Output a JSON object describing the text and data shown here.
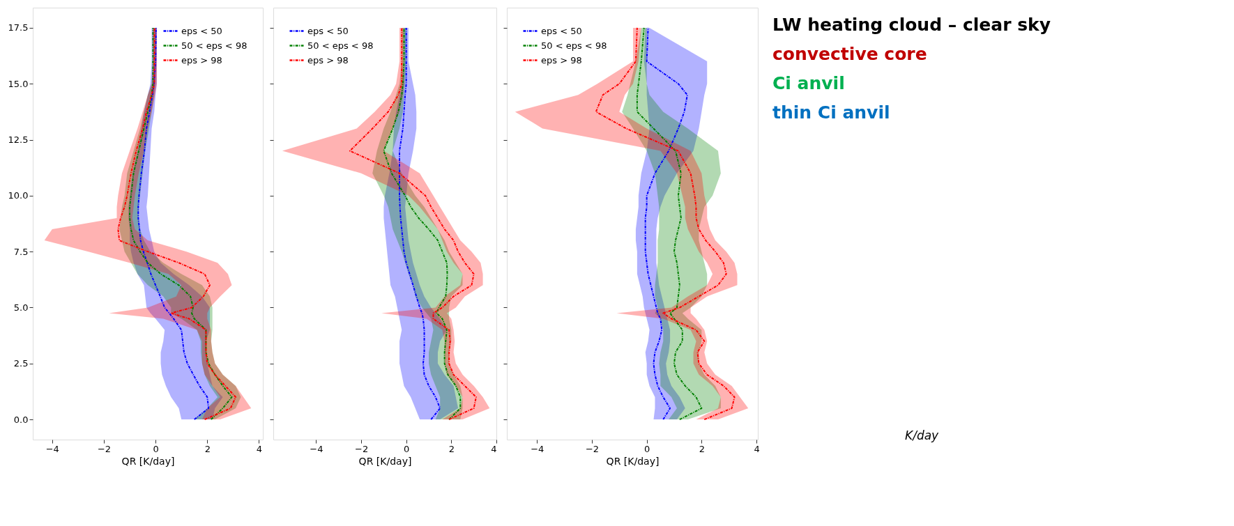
{
  "chart_data": [
    {
      "type": "line",
      "orientation": "horizontal",
      "xlabel": "QR [K/day]",
      "legend": "top right",
      "line_style": "dashed",
      "marker": "none",
      "grid": false,
      "xlim": [
        -4.75,
        4.15
      ],
      "xticks": [
        -4,
        -2,
        0,
        2,
        4
      ],
      "ylim": [
        -0.9,
        18.4
      ],
      "yticks": [
        {
          "value": 0,
          "label": "0.0"
        },
        2.5,
        {
          "value": 5,
          "label": "5.0"
        },
        7.5,
        {
          "value": 10,
          "label": "10.0"
        },
        12.5,
        {
          "value": 15,
          "label": "15.0"
        },
        17.5
      ],
      "x": [
        0,
        0.5,
        1,
        1.5,
        2,
        2.5,
        3,
        3.5,
        4,
        4.5,
        4.75,
        5,
        5.5,
        6,
        6.5,
        7,
        7.5,
        8,
        8.5,
        9,
        9.5,
        10,
        11,
        12,
        13,
        13.75,
        14.5,
        15,
        16,
        17.5
      ],
      "series": [
        {
          "name": "eps < 50",
          "color": "#0000ff",
          "values": [
            1.5,
            2.05,
            2.0,
            1.7,
            1.46,
            1.23,
            1.1,
            1.05,
            1.0,
            0.7,
            0.53,
            0.35,
            0.18,
            0,
            -0.18,
            -0.32,
            -0.47,
            -0.58,
            -0.62,
            -0.67,
            -0.67,
            -0.64,
            -0.55,
            -0.43,
            -0.35,
            -0.23,
            -0.12,
            -0.06,
            0.0,
            0.02
          ],
          "lower": [
            1.0,
            0.9,
            0.6,
            0.4,
            0.25,
            0.2,
            0.2,
            0.3,
            0.35,
            0.0,
            -0.2,
            -0.35,
            -0.4,
            -0.45,
            -0.7,
            -0.85,
            -0.95,
            -1.0,
            -1.0,
            -1.05,
            -1.05,
            -1.0,
            -0.9,
            -0.7,
            -0.55,
            -0.45,
            -0.3,
            -0.2,
            -0.15,
            -0.15
          ],
          "upper": [
            2.2,
            2.3,
            2.6,
            2.2,
            2.1,
            2.0,
            1.95,
            1.95,
            2.1,
            2.1,
            2.1,
            2.1,
            1.8,
            1.3,
            0.7,
            0.2,
            -0.05,
            -0.15,
            -0.25,
            -0.3,
            -0.35,
            -0.3,
            -0.25,
            -0.2,
            -0.15,
            -0.05,
            0.0,
            0.05,
            0.05,
            0.05
          ]
        },
        {
          "name": "50 < eps < 98",
          "color": "#008000",
          "values": [
            2.15,
            2.6,
            2.95,
            2.6,
            2.3,
            2.05,
            1.95,
            1.95,
            1.95,
            1.5,
            1.4,
            1.45,
            1.35,
            0.9,
            0.2,
            -0.3,
            -0.6,
            -0.85,
            -0.95,
            -1.0,
            -1.0,
            -0.95,
            -0.85,
            -0.65,
            -0.45,
            -0.3,
            -0.15,
            -0.1,
            -0.1,
            -0.1
          ],
          "lower": [
            1.5,
            2.0,
            2.4,
            2.1,
            1.9,
            1.8,
            1.75,
            1.75,
            1.6,
            1.0,
            0.6,
            0.6,
            0.3,
            -0.3,
            -0.7,
            -0.95,
            -1.2,
            -1.3,
            -1.4,
            -1.35,
            -1.3,
            -1.2,
            -1.1,
            -0.85,
            -0.6,
            -0.45,
            -0.3,
            -0.15,
            -0.1,
            -0.1
          ],
          "upper": [
            2.3,
            3.1,
            3.3,
            3.1,
            2.6,
            2.3,
            2.2,
            2.15,
            2.2,
            2.2,
            2.2,
            2.2,
            2.1,
            1.8,
            1.0,
            0.3,
            -0.2,
            -0.45,
            -0.6,
            -0.65,
            -0.65,
            -0.6,
            -0.5,
            -0.4,
            -0.25,
            -0.15,
            -0.05,
            0.0,
            0.02,
            0.02
          ]
        },
        {
          "name": "eps > 98",
          "color": "#ff0000",
          "values": [
            1.9,
            2.9,
            3.1,
            2.7,
            2.3,
            2.0,
            1.95,
            1.95,
            1.95,
            1.3,
            0.6,
            1.4,
            1.85,
            2.1,
            1.9,
            0.9,
            -0.3,
            -1.4,
            -1.45,
            -1.35,
            -1.2,
            -1.1,
            -0.95,
            -0.75,
            -0.5,
            -0.35,
            -0.15,
            -0.05,
            -0.04,
            -0.04
          ],
          "lower": [
            1.8,
            2.0,
            2.5,
            2.2,
            1.9,
            1.8,
            1.8,
            1.8,
            1.6,
            0.3,
            -1.8,
            -0.3,
            0.8,
            1.0,
            0.5,
            -1.0,
            -2.6,
            -4.3,
            -4.0,
            -1.5,
            -1.5,
            -1.45,
            -1.3,
            -1.0,
            -0.7,
            -0.5,
            -0.3,
            -0.15,
            -0.1,
            -0.1
          ],
          "upper": [
            2.5,
            3.7,
            3.4,
            3.1,
            2.6,
            2.3,
            2.2,
            2.15,
            2.15,
            2.0,
            2.0,
            2.1,
            2.5,
            2.95,
            2.8,
            2.4,
            1.2,
            -0.3,
            -0.8,
            -0.9,
            -0.85,
            -0.8,
            -0.65,
            -0.45,
            -0.3,
            -0.15,
            -0.02,
            0.05,
            0.05,
            0.05
          ]
        }
      ]
    },
    {
      "type": "line",
      "orientation": "horizontal",
      "xlabel": "QR [K/day]",
      "legend": "top left",
      "line_style": "dashed",
      "marker": "none",
      "grid": false,
      "tick_labels": "x",
      "xlim": [
        -5.9,
        4.0
      ],
      "xticks": [
        -4,
        -2,
        0,
        2,
        4
      ],
      "ylim": [
        -0.9,
        18.4
      ],
      "yticks": [
        0,
        2.5,
        5,
        7.5,
        10,
        12.5,
        15,
        17.5
      ],
      "x": [
        0,
        0.5,
        1,
        1.5,
        2,
        2.5,
        3,
        3.5,
        4,
        4.5,
        4.75,
        5,
        5.5,
        6,
        6.5,
        7,
        7.5,
        8,
        8.5,
        9,
        9.5,
        10,
        11,
        12,
        13,
        13.75,
        14.5,
        15,
        16,
        17.5
      ],
      "series": [
        {
          "name": "eps < 50",
          "color": "#0000ff",
          "values": [
            1.1,
            1.5,
            1.3,
            1.0,
            0.8,
            0.75,
            0.8,
            0.8,
            0.8,
            0.75,
            0.7,
            0.6,
            0.45,
            0.3,
            0.15,
            0.0,
            -0.1,
            -0.15,
            -0.2,
            -0.25,
            -0.28,
            -0.3,
            -0.3,
            -0.3,
            -0.15,
            -0.1,
            -0.05,
            0.0,
            0.0,
            0.0
          ],
          "lower": [
            0.6,
            0.4,
            0.2,
            -0.1,
            -0.2,
            -0.3,
            -0.3,
            -0.3,
            -0.2,
            -0.3,
            -0.35,
            -0.4,
            -0.5,
            -0.7,
            -0.75,
            -0.8,
            -0.85,
            -0.9,
            -0.95,
            -1.0,
            -1.0,
            -0.95,
            -0.75,
            -0.6,
            -0.55,
            -0.45,
            -0.3,
            -0.15,
            -0.1,
            -0.1
          ],
          "upper": [
            1.5,
            2.3,
            2.2,
            2.1,
            1.7,
            1.4,
            1.4,
            1.5,
            1.8,
            1.5,
            1.3,
            1.1,
            0.8,
            0.6,
            0.45,
            0.3,
            0.2,
            0.1,
            0.05,
            0.0,
            -0.05,
            0.0,
            0.1,
            0.3,
            0.45,
            0.45,
            0.4,
            0.3,
            0.1,
            0.1
          ]
        },
        {
          "name": "50 < eps < 98",
          "color": "#008000",
          "values": [
            1.9,
            2.4,
            2.4,
            2.2,
            1.85,
            1.7,
            1.7,
            1.75,
            1.8,
            1.6,
            1.35,
            1.45,
            1.75,
            1.8,
            1.82,
            1.8,
            1.6,
            1.4,
            1.0,
            0.55,
            0.2,
            -0.05,
            -0.65,
            -1.0,
            -0.6,
            -0.35,
            -0.2,
            -0.15,
            -0.1,
            -0.1
          ],
          "lower": [
            1.3,
            1.5,
            1.5,
            1.3,
            1.1,
            1.0,
            1.0,
            1.1,
            1.2,
            1.1,
            0.9,
            0.7,
            0.4,
            0.3,
            0.1,
            -0.05,
            -0.2,
            -0.4,
            -0.6,
            -0.7,
            -0.8,
            -1.0,
            -1.5,
            -1.3,
            -1.0,
            -0.7,
            -0.45,
            -0.3,
            -0.2,
            -0.2
          ],
          "upper": [
            2.4,
            2.5,
            2.5,
            2.4,
            2.1,
            1.9,
            1.9,
            2.0,
            2.0,
            1.9,
            1.9,
            1.9,
            2.0,
            2.5,
            2.5,
            2.2,
            1.9,
            1.7,
            1.4,
            1.1,
            0.8,
            0.4,
            -0.2,
            -0.6,
            -0.3,
            -0.15,
            -0.1,
            -0.05,
            0.0,
            0.0
          ]
        },
        {
          "name": "eps > 98",
          "color": "#ff0000",
          "values": [
            1.9,
            3.0,
            3.1,
            2.6,
            2.1,
            1.9,
            1.9,
            1.95,
            1.9,
            1.2,
            1.2,
            1.6,
            2.1,
            2.9,
            3.0,
            2.6,
            2.3,
            2.1,
            1.7,
            1.4,
            1.1,
            0.85,
            -0.3,
            -2.5,
            -1.5,
            -0.8,
            -0.35,
            -0.2,
            -0.2,
            -0.2
          ],
          "lower": [
            1.6,
            2.4,
            2.5,
            2.2,
            1.8,
            1.7,
            1.7,
            1.7,
            1.6,
            0.9,
            -1.1,
            1.3,
            1.7,
            2.4,
            2.5,
            2.1,
            1.8,
            1.6,
            1.4,
            1.0,
            0.6,
            0.1,
            -2.0,
            -5.5,
            -2.2,
            -1.4,
            -0.7,
            -0.45,
            -0.3,
            -0.3
          ],
          "upper": [
            2.5,
            3.7,
            3.4,
            3.0,
            2.5,
            2.2,
            2.1,
            2.15,
            2.1,
            2.0,
            1.8,
            2.2,
            2.6,
            3.4,
            3.4,
            3.3,
            2.9,
            2.4,
            2.1,
            1.8,
            1.5,
            1.2,
            0.6,
            -1.0,
            -0.6,
            -0.3,
            -0.15,
            -0.1,
            -0.1,
            -0.1
          ]
        }
      ]
    },
    {
      "type": "line",
      "orientation": "horizontal",
      "xlabel": "QR [K/day]",
      "legend": "top left",
      "line_style": "dashed",
      "marker": "none",
      "grid": false,
      "tick_labels": "x",
      "xlim": [
        -5.1,
        4.05
      ],
      "xticks": [
        -4,
        -2,
        0,
        2,
        4
      ],
      "ylim": [
        -0.9,
        18.4
      ],
      "yticks": [
        0,
        2.5,
        5,
        7.5,
        10,
        12.5,
        15,
        17.5
      ],
      "x": [
        0,
        0.5,
        1,
        1.5,
        2,
        2.5,
        3,
        3.5,
        4,
        4.5,
        4.75,
        5,
        5.5,
        6,
        6.5,
        7,
        7.5,
        8,
        8.5,
        9,
        9.5,
        10,
        11,
        12,
        13,
        13.75,
        14.5,
        15,
        16,
        17.5
      ],
      "series": [
        {
          "name": "eps < 50",
          "color": "#0000ff",
          "values": [
            0.6,
            0.85,
            0.6,
            0.4,
            0.3,
            0.25,
            0.3,
            0.45,
            0.55,
            0.5,
            0.4,
            0.35,
            0.25,
            0.15,
            0.05,
            0.0,
            -0.05,
            -0.05,
            -0.05,
            -0.05,
            0.0,
            0.0,
            0.3,
            0.8,
            1.15,
            1.37,
            1.48,
            1.15,
            0.0,
            0.05
          ],
          "lower": [
            0.25,
            0.3,
            0.3,
            0.1,
            0.0,
            0.0,
            -0.05,
            0.05,
            0.1,
            0.0,
            -0.05,
            -0.1,
            -0.15,
            -0.25,
            -0.35,
            -0.35,
            -0.35,
            -0.4,
            -0.4,
            -0.35,
            -0.3,
            -0.3,
            -0.2,
            0.0,
            0.1,
            0.05,
            0.0,
            0.0,
            -0.1,
            -0.05
          ],
          "upper": [
            1.1,
            1.4,
            1.2,
            0.9,
            0.75,
            0.7,
            0.8,
            0.85,
            0.85,
            0.75,
            0.7,
            0.65,
            0.55,
            0.45,
            0.4,
            0.35,
            0.35,
            0.35,
            0.35,
            0.4,
            0.5,
            0.65,
            1.1,
            1.7,
            1.9,
            2.0,
            2.1,
            2.2,
            2.2,
            0.1
          ]
        },
        {
          "name": "50 < eps < 98",
          "color": "#008000",
          "values": [
            1.2,
            2.0,
            1.8,
            1.4,
            1.1,
            1.0,
            1.05,
            1.3,
            1.3,
            1.0,
            0.85,
            1.1,
            1.15,
            1.2,
            1.15,
            1.1,
            1.0,
            1.05,
            1.15,
            1.25,
            1.2,
            1.15,
            1.25,
            1.05,
            0.25,
            -0.35,
            -0.35,
            -0.3,
            -0.2,
            -0.1
          ],
          "lower": [
            0.8,
            1.1,
            0.9,
            0.5,
            0.5,
            0.45,
            0.5,
            0.6,
            0.6,
            0.5,
            0.3,
            0.4,
            0.3,
            0.3,
            0.35,
            0.4,
            0.4,
            0.4,
            0.45,
            0.45,
            0.45,
            0.4,
            0.3,
            0.0,
            -0.5,
            -0.9,
            -0.7,
            -0.6,
            -0.4,
            -0.2
          ],
          "upper": [
            1.5,
            2.7,
            2.7,
            2.5,
            2.1,
            1.9,
            1.9,
            2.0,
            2.0,
            1.5,
            1.3,
            1.6,
            2.0,
            2.2,
            2.2,
            2.1,
            2.0,
            1.9,
            1.9,
            2.0,
            2.1,
            2.4,
            2.7,
            2.6,
            1.5,
            0.6,
            0.1,
            0.0,
            0.0,
            0.0
          ]
        },
        {
          "name": "eps > 98",
          "color": "#ff0000",
          "values": [
            2.1,
            3.1,
            3.2,
            2.8,
            2.2,
            1.9,
            1.85,
            2.1,
            1.8,
            0.9,
            0.6,
            1.2,
            1.9,
            2.6,
            2.9,
            2.8,
            2.5,
            2.15,
            1.9,
            1.8,
            1.8,
            1.75,
            1.6,
            1.15,
            -0.75,
            -1.85,
            -1.6,
            -1.0,
            -0.4,
            -0.35
          ],
          "lower": [
            1.8,
            2.6,
            2.7,
            2.4,
            1.9,
            1.7,
            1.7,
            1.8,
            1.6,
            0.6,
            -1.1,
            0.9,
            1.5,
            2.2,
            2.4,
            2.2,
            1.9,
            1.7,
            1.5,
            1.4,
            1.4,
            1.3,
            1.1,
            0.5,
            -3.8,
            -4.8,
            -2.5,
            -1.8,
            -0.5,
            -0.5
          ],
          "upper": [
            2.6,
            3.7,
            3.4,
            3.1,
            2.5,
            2.2,
            2.1,
            2.2,
            2.1,
            1.8,
            1.6,
            1.6,
            2.2,
            3.3,
            3.3,
            3.2,
            2.9,
            2.5,
            2.3,
            2.2,
            2.2,
            2.1,
            2.0,
            1.6,
            0.0,
            -1.0,
            -0.8,
            -0.5,
            -0.3,
            -0.2
          ]
        }
      ]
    },
    {
      "type": "other",
      "annotations": [
        "LW heating cloud – clear sky",
        "convective core",
        "Ci anvil",
        "thin Ci anvil",
        "K/day"
      ],
      "colors": [
        "#000000",
        "#c00000",
        "#00b050",
        "#0070c0",
        "#000000"
      ]
    }
  ]
}
